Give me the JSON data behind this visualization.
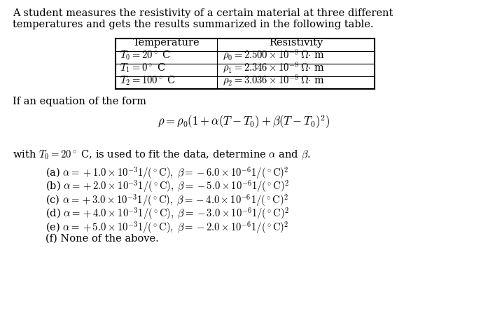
{
  "bg_color": "#ffffff",
  "text_color": "#000000",
  "figsize": [
    6.97,
    4.67
  ],
  "dpi": 100,
  "intro_line1": "A student measures the resistivity of a certain material at three different",
  "intro_line2": "temperatures and gets the results summarized in the following table.",
  "table_header_temp": "Temperature",
  "table_header_res": "Resistivity",
  "table_rows_temp": [
    "$T_0 = 20^\\circ$ C",
    "$T_1 = 0^\\circ$ C",
    "$T_2 = 100^\\circ$ C"
  ],
  "table_rows_res": [
    "$\\rho_0 = 2.500 \\times 10^{-8}\\,\\Omega{\\cdot}$ m",
    "$\\rho_1 = 2.346 \\times 10^{-8}\\,\\Omega{\\cdot}$ m",
    "$\\rho_2 = 3.036 \\times 10^{-8}\\,\\Omega{\\cdot}$ m"
  ],
  "form_line": "If an equation of the form",
  "equation": "$\\rho = \\rho_0(1 + \\alpha(T - T_0) + \\beta(T - T_0)^2)$",
  "with_line": "with $T_0 = 20^\\circ$ C, is used to fit the data, determine $\\alpha$ and $\\beta$.",
  "choices": [
    "(a) $\\alpha = +1.0 \\times 10^{-3}1/(^\\circ\\mathrm{C}),\\; \\beta = -6.0 \\times 10^{-6}1/(^\\circ\\mathrm{C})^2$",
    "(b) $\\alpha = +2.0 \\times 10^{-3}1/(^\\circ\\mathrm{C}),\\; \\beta = -5.0 \\times 10^{-6}1/(^\\circ\\mathrm{C})^2$",
    "(c) $\\alpha = +3.0 \\times 10^{-3}1/(^\\circ\\mathrm{C}),\\; \\beta = -4.0 \\times 10^{-6}1/(^\\circ\\mathrm{C})^2$",
    "(d) $\\alpha = +4.0 \\times 10^{-3}1/(^\\circ\\mathrm{C}),\\; \\beta = -3.0 \\times 10^{-6}1/(^\\circ\\mathrm{C})^2$",
    "(e) $\\alpha = +5.0 \\times 10^{-3}1/(^\\circ\\mathrm{C}),\\; \\beta = -2.0 \\times 10^{-6}1/(^\\circ\\mathrm{C})^2$",
    "(f) None of the above."
  ],
  "font_size": 10.5,
  "eq_font_size": 12.0
}
